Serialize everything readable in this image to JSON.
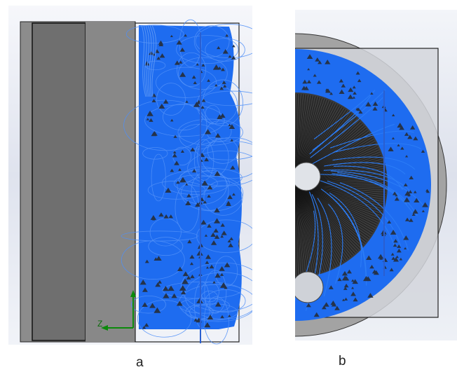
{
  "captions": {
    "a": "a",
    "b": "b"
  },
  "triad": {
    "z": "Z"
  },
  "colors": {
    "flow": "#1e6cf0",
    "arrow": "#25334a",
    "body": "#8a8a8a",
    "body_dark": "#6e6e6e",
    "outline": "#111111",
    "frame_b": "#cfd2d8",
    "fan": "#1a1a1a",
    "triad_green": "#0b8a0b"
  }
}
